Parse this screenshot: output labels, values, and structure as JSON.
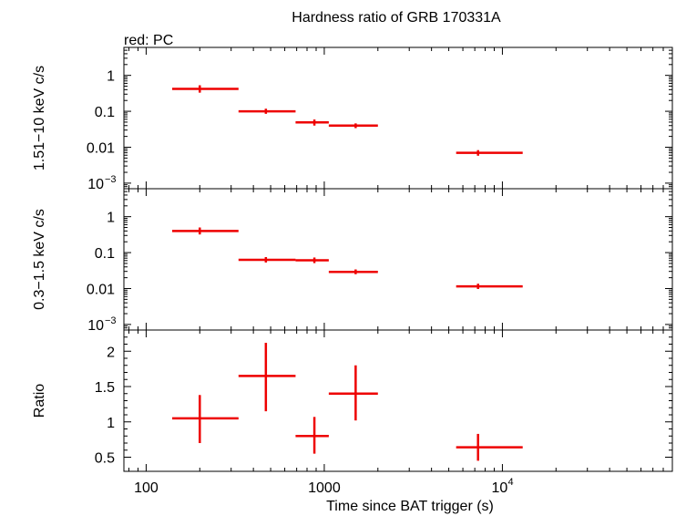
{
  "title": "Hardness ratio of GRB 170331A",
  "legend_note": "red: PC",
  "colors": {
    "data": "#ee0000",
    "axis": "#000000",
    "background": "#ffffff"
  },
  "chart_data": [
    {
      "type": "scatter",
      "panel": "top",
      "ylabel": "1.51−10 keV c/s",
      "yscale": "log",
      "ylim": [
        0.0007,
        6
      ],
      "yticks": [
        {
          "value": 1,
          "label": "1"
        },
        {
          "value": 0.1,
          "label": "0.1"
        },
        {
          "value": 0.01,
          "label": "0.01"
        },
        {
          "value": 0.001,
          "label": "10",
          "sup": "−3"
        }
      ],
      "series": [
        {
          "color": "#ee0000",
          "points": [
            {
              "x": 200,
              "xlo": 140,
              "xhi": 330,
              "y": 0.42,
              "ylo": 0.33,
              "yhi": 0.53
            },
            {
              "x": 470,
              "xlo": 330,
              "xhi": 690,
              "y": 0.1,
              "ylo": 0.085,
              "yhi": 0.118
            },
            {
              "x": 880,
              "xlo": 690,
              "xhi": 1060,
              "y": 0.049,
              "ylo": 0.04,
              "yhi": 0.059
            },
            {
              "x": 1500,
              "xlo": 1060,
              "xhi": 2000,
              "y": 0.04,
              "ylo": 0.034,
              "yhi": 0.046
            },
            {
              "x": 7300,
              "xlo": 5500,
              "xhi": 13000,
              "y": 0.007,
              "ylo": 0.0058,
              "yhi": 0.0083
            }
          ]
        }
      ]
    },
    {
      "type": "scatter",
      "panel": "middle",
      "ylabel": "0.3−1.5 keV c/s",
      "yscale": "log",
      "ylim": [
        0.0007,
        6
      ],
      "yticks": [
        {
          "value": 1,
          "label": "1"
        },
        {
          "value": 0.1,
          "label": "0.1"
        },
        {
          "value": 0.01,
          "label": "0.01"
        },
        {
          "value": 0.001,
          "label": "10",
          "sup": "−3"
        }
      ],
      "series": [
        {
          "color": "#ee0000",
          "points": [
            {
              "x": 200,
              "xlo": 140,
              "xhi": 330,
              "y": 0.4,
              "ylo": 0.32,
              "yhi": 0.5
            },
            {
              "x": 470,
              "xlo": 330,
              "xhi": 690,
              "y": 0.063,
              "ylo": 0.053,
              "yhi": 0.075
            },
            {
              "x": 880,
              "xlo": 690,
              "xhi": 1060,
              "y": 0.061,
              "ylo": 0.051,
              "yhi": 0.073
            },
            {
              "x": 1500,
              "xlo": 1060,
              "xhi": 2000,
              "y": 0.029,
              "ylo": 0.025,
              "yhi": 0.034
            },
            {
              "x": 7300,
              "xlo": 5500,
              "xhi": 13000,
              "y": 0.0115,
              "ylo": 0.0097,
              "yhi": 0.0136
            }
          ]
        }
      ]
    },
    {
      "type": "scatter",
      "panel": "bottom",
      "ylabel": "Ratio",
      "yscale": "linear",
      "ylim": [
        0.3,
        2.3
      ],
      "yticks": [
        {
          "value": 0.5,
          "label": "0.5"
        },
        {
          "value": 1,
          "label": "1"
        },
        {
          "value": 1.5,
          "label": "1.5"
        },
        {
          "value": 2,
          "label": "2"
        }
      ],
      "xlabel": "Time since BAT trigger (s)",
      "xscale": "log",
      "xlim": [
        75,
        90000
      ],
      "xticks": [
        {
          "value": 100,
          "label": "100"
        },
        {
          "value": 1000,
          "label": "1000"
        },
        {
          "value": 10000,
          "label": "10",
          "sup": "4"
        }
      ],
      "series": [
        {
          "color": "#ee0000",
          "points": [
            {
              "x": 200,
              "xlo": 140,
              "xhi": 330,
              "y": 1.05,
              "ylo": 0.7,
              "yhi": 1.38
            },
            {
              "x": 470,
              "xlo": 330,
              "xhi": 690,
              "y": 1.65,
              "ylo": 1.15,
              "yhi": 2.12
            },
            {
              "x": 880,
              "xlo": 690,
              "xhi": 1060,
              "y": 0.8,
              "ylo": 0.55,
              "yhi": 1.07
            },
            {
              "x": 1500,
              "xlo": 1060,
              "xhi": 2000,
              "y": 1.4,
              "ylo": 1.02,
              "yhi": 1.8
            },
            {
              "x": 7300,
              "xlo": 5500,
              "xhi": 13000,
              "y": 0.64,
              "ylo": 0.45,
              "yhi": 0.83
            }
          ]
        }
      ]
    }
  ]
}
